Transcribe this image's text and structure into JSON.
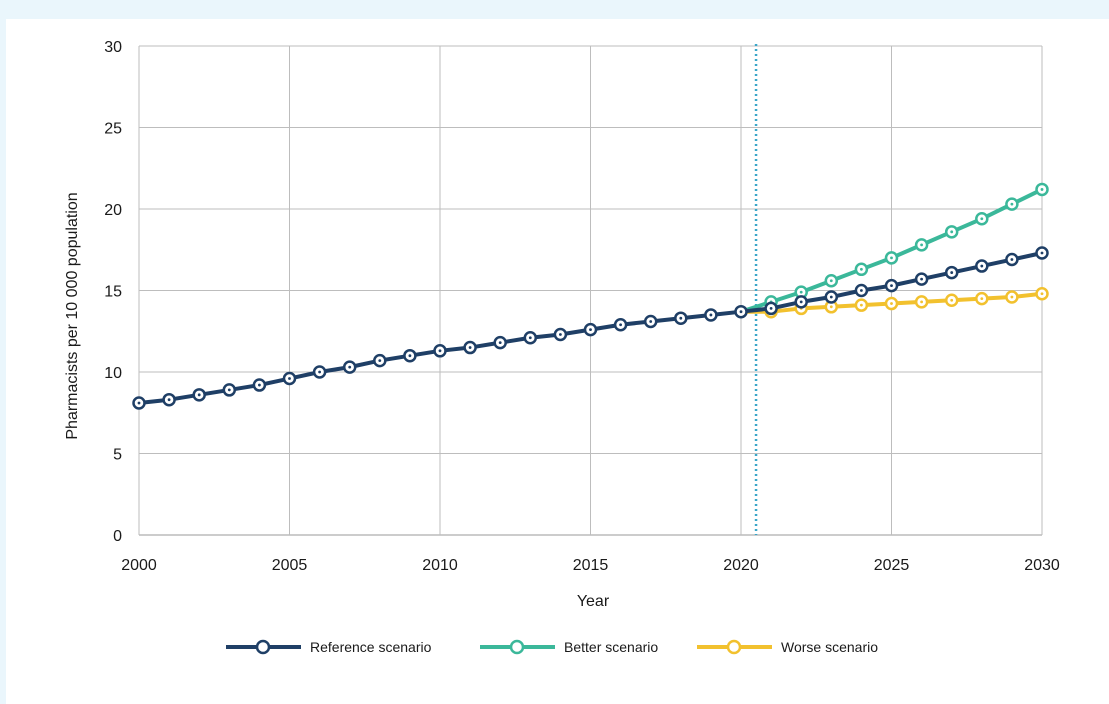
{
  "chart_data": {
    "type": "line",
    "title": "",
    "xlabel": "Year",
    "ylabel": "Pharmacists per 10 000 population",
    "xlim": [
      2000,
      2030
    ],
    "ylim": [
      0,
      30
    ],
    "x_ticks": [
      "2000",
      "2005",
      "2010",
      "2015",
      "2020",
      "2025",
      "2030"
    ],
    "y_ticks": [
      "0",
      "5",
      "10",
      "15",
      "20",
      "25",
      "30"
    ],
    "grid": true,
    "vertical_marker_x": 2020.5,
    "legend_position": "bottom-center",
    "series": [
      {
        "name": "Reference scenario",
        "color": "#1f3f66",
        "x": [
          2000,
          2001,
          2002,
          2003,
          2004,
          2005,
          2006,
          2007,
          2008,
          2009,
          2010,
          2011,
          2012,
          2013,
          2014,
          2015,
          2016,
          2017,
          2018,
          2019,
          2020,
          2021,
          2022,
          2023,
          2024,
          2025,
          2026,
          2027,
          2028,
          2029,
          2030
        ],
        "values": [
          8.1,
          8.3,
          8.6,
          8.9,
          9.2,
          9.6,
          10.0,
          10.3,
          10.7,
          11.0,
          11.3,
          11.5,
          11.8,
          12.1,
          12.3,
          12.6,
          12.9,
          13.1,
          13.3,
          13.5,
          13.7,
          13.9,
          14.3,
          14.6,
          15.0,
          15.3,
          15.7,
          16.1,
          16.5,
          16.9,
          17.3
        ]
      },
      {
        "name": "Better  scenario",
        "color": "#3bb89a",
        "x": [
          2020,
          2021,
          2022,
          2023,
          2024,
          2025,
          2026,
          2027,
          2028,
          2029,
          2030
        ],
        "values": [
          13.7,
          14.3,
          14.9,
          15.6,
          16.3,
          17.0,
          17.8,
          18.6,
          19.4,
          20.3,
          21.2
        ]
      },
      {
        "name": "Worse scenario",
        "color": "#f2c12e",
        "x": [
          2020,
          2021,
          2022,
          2023,
          2024,
          2025,
          2026,
          2027,
          2028,
          2029,
          2030
        ],
        "values": [
          13.7,
          13.7,
          13.9,
          14.0,
          14.1,
          14.2,
          14.3,
          14.4,
          14.5,
          14.6,
          14.8
        ]
      }
    ],
    "marker_color": "#3aa6c9"
  }
}
